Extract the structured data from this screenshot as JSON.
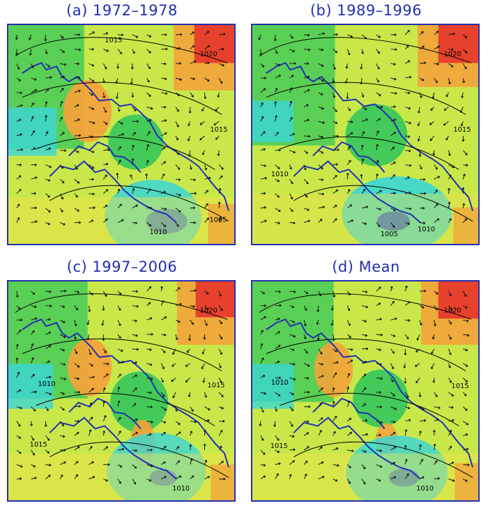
{
  "panels": [
    {
      "title": "(a) 1972–1978",
      "contour_labels": [
        "1015",
        "1015",
        "1020",
        "1010",
        "1005"
      ],
      "center_feature": "warm"
    },
    {
      "title": "(b) 1989–1996",
      "contour_labels": [
        "1020",
        "1015",
        "1010",
        "1010",
        "1005"
      ],
      "center_feature": "cool"
    },
    {
      "title": "(c) 1997–2006",
      "contour_labels": [
        "1015",
        "1010",
        "1020",
        "1015",
        "1010"
      ],
      "center_feature": "warm"
    },
    {
      "title": "(d) Mean",
      "contour_labels": [
        "1020",
        "1015",
        "1015",
        "1010",
        "1010"
      ],
      "center_feature": "warm"
    }
  ],
  "colors": {
    "title": "#1f2fb4",
    "coastline": "#1f2fb4",
    "cyan": "#39d6d6",
    "green": "#35c75a",
    "yellow_green": "#c8e84a",
    "yellow": "#f0e24a",
    "orange": "#f2a33a",
    "red": "#e53b2b",
    "dark_red": "#7a1010",
    "blue": "#1a54d8"
  },
  "icons": {
    "arrow": "wind-arrow-icon"
  }
}
